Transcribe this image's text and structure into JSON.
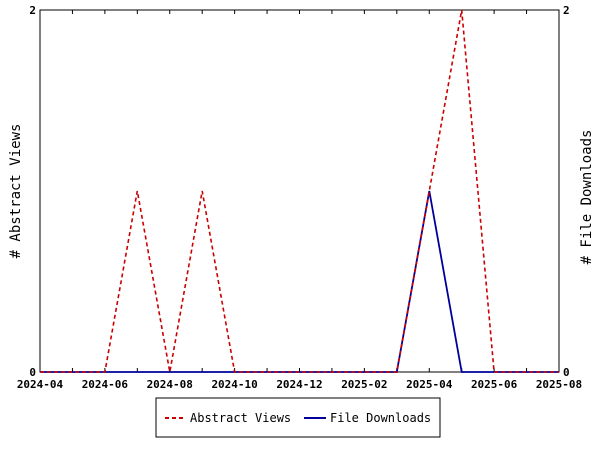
{
  "chart_data": {
    "type": "line",
    "x": [
      "2024-04",
      "2024-05",
      "2024-06",
      "2024-07",
      "2024-08",
      "2024-09",
      "2024-10",
      "2024-11",
      "2024-12",
      "2025-01",
      "2025-02",
      "2025-03",
      "2025-04",
      "2025-05",
      "2025-06",
      "2025-07",
      "2025-08"
    ],
    "x_tick_labels": [
      "2024-04",
      "2024-06",
      "2024-08",
      "2024-10",
      "2024-12",
      "2025-02",
      "2025-04",
      "2025-06",
      "2025-08"
    ],
    "series": [
      {
        "name": "Abstract Views",
        "axis": "left",
        "color": "#cc0000",
        "style": "dashed",
        "values": [
          0,
          0,
          0,
          1,
          0,
          1,
          0,
          0,
          0,
          0,
          0,
          0,
          1,
          2,
          0,
          0,
          0
        ]
      },
      {
        "name": "File Downloads",
        "axis": "right",
        "color": "#000099",
        "style": "solid",
        "values": [
          0,
          0,
          0,
          0,
          0,
          0,
          0,
          0,
          0,
          0,
          0,
          0,
          1,
          0,
          0,
          0,
          0
        ]
      }
    ],
    "ylabel_left": "# Abstract Views",
    "ylabel_right": "# File Downloads",
    "ylim_left": [
      0,
      2
    ],
    "ylim_right": [
      0,
      2
    ],
    "y_ticks_left": [
      "0",
      "2"
    ],
    "y_ticks_right": [
      "0",
      "2"
    ],
    "grid": false,
    "legend_position": "bottom-center"
  }
}
